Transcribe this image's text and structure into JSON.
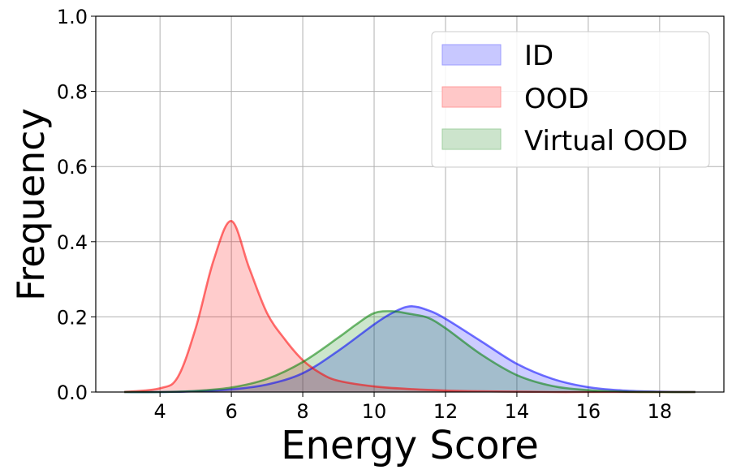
{
  "chart_data": {
    "type": "area",
    "xlabel": "Energy Score",
    "ylabel": "Frequency",
    "xlim": [
      2.2,
      19.8
    ],
    "ylim": [
      0,
      1.0
    ],
    "x_ticks": [
      4,
      6,
      8,
      10,
      12,
      14,
      16,
      18
    ],
    "y_ticks": [
      "0.0",
      "0.2",
      "0.4",
      "0.6",
      "0.8",
      "1.0"
    ],
    "grid": true,
    "legend_position": "top-right",
    "series": [
      {
        "name": "ID",
        "color": "#0000ff",
        "fill": "#c8c8ff",
        "x": [
          3,
          4,
          5,
          6,
          7,
          8,
          9,
          10,
          10.5,
          11,
          11.5,
          12,
          13,
          14,
          15,
          16,
          17,
          18,
          19
        ],
        "y": [
          0.0,
          0.0,
          0.002,
          0.007,
          0.02,
          0.05,
          0.11,
          0.18,
          0.21,
          0.228,
          0.218,
          0.195,
          0.135,
          0.075,
          0.035,
          0.013,
          0.004,
          0.001,
          0.0
        ]
      },
      {
        "name": "OOD",
        "color": "#ff0000",
        "fill": "#ffc8c8",
        "x": [
          3,
          4,
          4.5,
          5,
          5.5,
          6,
          6.5,
          7,
          7.5,
          8,
          8.5,
          9,
          10,
          11,
          12,
          13,
          14,
          15,
          16,
          17,
          18,
          19
        ],
        "y": [
          0.0,
          0.01,
          0.04,
          0.17,
          0.35,
          0.455,
          0.33,
          0.21,
          0.14,
          0.085,
          0.05,
          0.03,
          0.015,
          0.008,
          0.004,
          0.002,
          0.001,
          0.0,
          0.0,
          0.0,
          0.0,
          0.0
        ]
      },
      {
        "name": "Virtual OOD",
        "color": "#008000",
        "fill": "#cce4cc",
        "x": [
          3,
          4,
          5,
          6,
          7,
          8,
          9,
          9.5,
          10,
          10.5,
          11,
          11.5,
          12,
          13,
          14,
          15,
          16,
          17,
          18,
          19
        ],
        "y": [
          0.0,
          0.0,
          0.003,
          0.012,
          0.035,
          0.08,
          0.145,
          0.18,
          0.21,
          0.215,
          0.208,
          0.198,
          0.17,
          0.1,
          0.045,
          0.016,
          0.005,
          0.001,
          0.0,
          0.0
        ]
      }
    ]
  }
}
